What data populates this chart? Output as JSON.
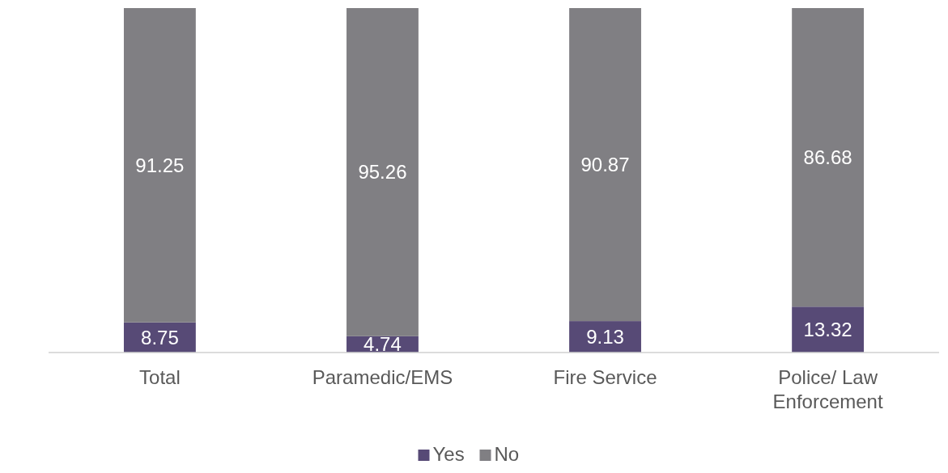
{
  "chart_data": {
    "type": "bar",
    "stacked": true,
    "categories": [
      "Total",
      "Paramedic/EMS",
      "Fire Service",
      "Police/ Law Enforcement"
    ],
    "series": [
      {
        "name": "Yes",
        "color": "#574a76",
        "values": [
          8.75,
          4.74,
          9.13,
          13.32
        ]
      },
      {
        "name": "No",
        "color": "#807f83",
        "values": [
          91.25,
          95.26,
          90.87,
          86.68
        ]
      }
    ],
    "data_labels": true,
    "legend": "bottom"
  }
}
